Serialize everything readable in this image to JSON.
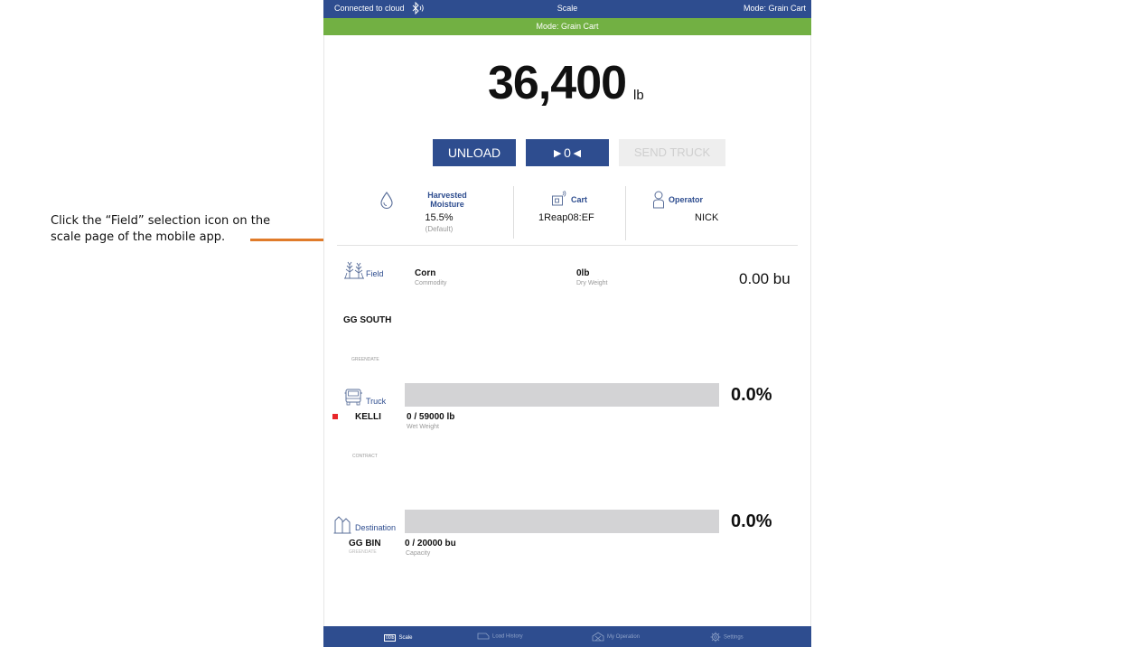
{
  "annotation": {
    "text": "Click the “Field” selection icon on the scale page of the mobile app."
  },
  "status_bar": {
    "connection": "Connected to cloud",
    "title": "Scale",
    "mode": "Mode: Grain Cart"
  },
  "mode_banner": "Mode: Grain Cart",
  "weight": {
    "value": "36,400",
    "unit": "lb"
  },
  "buttons": {
    "unload": "UNLOAD",
    "zero": "►0◄",
    "send_truck": "SEND TRUCK"
  },
  "info": {
    "moisture_label_1": "Harvested",
    "moisture_label_2": "Moisture",
    "moisture_value": "15.5%",
    "moisture_note": "(Default)",
    "cart_label": "Cart",
    "cart_value": "1Reap08:EF",
    "operator_label": "Operator",
    "operator_value": "NICK"
  },
  "field": {
    "label": "Field",
    "commodity_value": "Corn",
    "commodity_label": "Commodity",
    "dry_weight_value": "0lb",
    "dry_weight_label": "Dry Weight",
    "bushels": "0.00 bu",
    "name": "GG SOUTH",
    "farm": "GREENDATE"
  },
  "truck": {
    "label": "Truck",
    "name": "KELLI",
    "load": "0 / 59000 lb",
    "load_label": "Wet Weight",
    "percent": "0.0%",
    "progress": 0.0,
    "contract": "CONTRACT"
  },
  "destination": {
    "label": "Destination",
    "name": "GG BIN",
    "farm": "GREENDATE",
    "load": "0 / 20000 bu",
    "load_label": "Capacity",
    "percent": "0.0%",
    "progress": 0.0
  },
  "footer": {
    "scale_badge": "00lb",
    "scale": "Scale",
    "load_history": "Load History",
    "my_operation": "My Operation",
    "settings": "Settings"
  },
  "colors": {
    "primary_blue": "#2e4d8f",
    "mode_green": "#72b043",
    "annotation_orange": "#e07b2a",
    "truck_marker_red": "#e8262a"
  }
}
